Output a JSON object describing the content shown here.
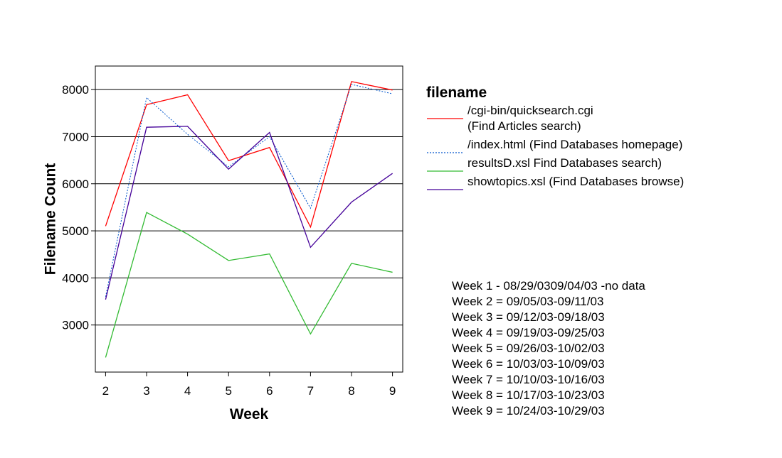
{
  "chart_data": {
    "type": "line",
    "title": "",
    "xlabel": "Week",
    "ylabel": "Filename Count",
    "x": [
      2,
      3,
      4,
      5,
      6,
      7,
      8,
      9
    ],
    "xlim": [
      1.75,
      9.25
    ],
    "ylim": [
      2000,
      8500
    ],
    "yticks": [
      3000,
      4000,
      5000,
      6000,
      7000,
      8000
    ],
    "grid": "horizontal",
    "legend": {
      "title": "filename",
      "placement": "right",
      "entries": [
        [
          "/cgi-bin/quicksearch.cgi",
          "(Find Articles search)"
        ],
        [
          "/index.html   (Find Databases homepage)"
        ],
        [
          "resultsD.xsl Find Databases search)"
        ],
        [
          "showtopics.xsl  (Find Databases browse)"
        ]
      ]
    },
    "series": [
      {
        "name": "/cgi-bin/quicksearch.cgi (Find Articles search)",
        "color": "#ff0000",
        "dash": "solid",
        "values": [
          5100,
          7680,
          7890,
          6490,
          6770,
          5080,
          8170,
          7990
        ]
      },
      {
        "name": "/index.html   (Find Databases homepage)",
        "color": "#0055cc",
        "dash": "dotted",
        "values": [
          3600,
          7830,
          7050,
          6360,
          7000,
          5480,
          8110,
          7910
        ]
      },
      {
        "name": "resultsD.xsl Find Databases search)",
        "color": "#33bb33",
        "dash": "solid",
        "values": [
          2310,
          5390,
          4930,
          4370,
          4510,
          2810,
          4310,
          4120
        ]
      },
      {
        "name": "showtopics.xsl  (Find Databases browse)",
        "color": "#440099",
        "dash": "solid",
        "values": [
          3540,
          7200,
          7220,
          6310,
          7090,
          4650,
          5610,
          6220
        ]
      }
    ],
    "annotations": [
      "Week 1 - 08/29/0309/04/03 -no data",
      "Week 2 = 09/05/03-09/11/03",
      "Week 3 = 09/12/03-09/18/03",
      "Week 4 = 09/19/03-09/25/03",
      "Week 5 = 09/26/03-10/02/03",
      "Week 6 = 10/03/03-10/09/03",
      "Week 7 = 10/10/03-10/16/03",
      "Week 8 = 10/17/03-10/23/03",
      "Week 9 = 10/24/03-10/29/03"
    ]
  }
}
